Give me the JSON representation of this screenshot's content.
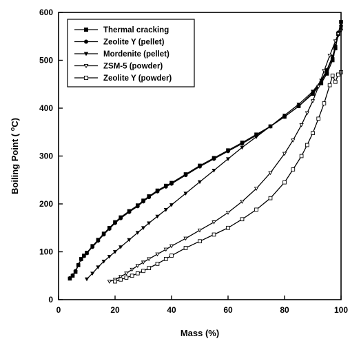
{
  "chart_data": {
    "type": "line",
    "xlabel": "Mass (%)",
    "ylabel": "Boiling Point ( °C)",
    "ylabel_parts": {
      "prefix": "Boiling Point ( ",
      "sup": "o",
      "suffix": "C)"
    },
    "xlim": [
      0,
      100
    ],
    "ylim": [
      0,
      600
    ],
    "xticks": [
      0,
      20,
      40,
      60,
      80,
      100
    ],
    "yticks": [
      0,
      100,
      200,
      300,
      400,
      500,
      600
    ],
    "grid": false,
    "legend_position": "top-left",
    "series": [
      {
        "name": "Thermal cracking",
        "marker": "filled-square",
        "x": [
          4,
          5,
          6,
          7,
          8,
          9,
          10,
          12,
          14,
          16,
          18,
          20,
          22,
          25,
          28,
          30,
          32,
          35,
          38,
          40,
          45,
          50,
          55,
          60,
          65,
          70,
          75,
          80,
          85,
          90,
          93,
          95,
          97,
          98,
          99,
          100
        ],
        "y": [
          44,
          50,
          58,
          72,
          85,
          92,
          98,
          112,
          125,
          138,
          150,
          162,
          172,
          185,
          197,
          207,
          216,
          228,
          238,
          244,
          262,
          280,
          296,
          312,
          328,
          345,
          362,
          382,
          404,
          430,
          452,
          472,
          500,
          525,
          555,
          580
        ]
      },
      {
        "name": "Zeolite Y (pellet)",
        "marker": "filled-circle",
        "x": [
          4,
          5,
          6,
          7,
          8,
          9,
          10,
          12,
          14,
          16,
          18,
          20,
          22,
          25,
          28,
          30,
          32,
          35,
          38,
          40,
          45,
          50,
          55,
          60,
          65,
          70,
          75,
          80,
          85,
          90,
          93,
          95,
          97,
          98,
          99,
          100
        ],
        "y": [
          45,
          51,
          60,
          73,
          84,
          91,
          97,
          110,
          123,
          136,
          148,
          160,
          170,
          183,
          195,
          205,
          214,
          226,
          236,
          242,
          260,
          278,
          294,
          310,
          326,
          343,
          362,
          382,
          404,
          432,
          455,
          478,
          505,
          530,
          558,
          572
        ]
      },
      {
        "name": "Mordenite (pellet)",
        "marker": "filled-triangle",
        "x": [
          10,
          12,
          14,
          16,
          18,
          20,
          22,
          25,
          28,
          30,
          32,
          35,
          38,
          40,
          45,
          50,
          55,
          60,
          65,
          70,
          75,
          80,
          85,
          90,
          93,
          95,
          97,
          98,
          99,
          100
        ],
        "y": [
          43,
          55,
          68,
          80,
          90,
          100,
          110,
          125,
          140,
          150,
          160,
          174,
          188,
          198,
          222,
          246,
          270,
          294,
          318,
          340,
          362,
          385,
          408,
          435,
          458,
          480,
          508,
          528,
          552,
          565
        ]
      },
      {
        "name": "ZSM-5 (powder)",
        "marker": "open-triangle",
        "x": [
          18,
          20,
          22,
          24,
          26,
          28,
          30,
          32,
          35,
          38,
          40,
          45,
          50,
          55,
          60,
          65,
          70,
          75,
          80,
          83,
          86,
          88,
          90,
          92,
          94,
          96,
          98,
          99,
          100
        ],
        "y": [
          38,
          42,
          48,
          55,
          63,
          71,
          78,
          85,
          95,
          105,
          112,
          128,
          145,
          162,
          182,
          205,
          232,
          265,
          305,
          333,
          365,
          390,
          415,
          445,
          478,
          510,
          540,
          555,
          562
        ]
      },
      {
        "name": "Zeolite Y (powder)",
        "marker": "open-square",
        "x": [
          20,
          22,
          24,
          26,
          28,
          30,
          32,
          35,
          38,
          40,
          45,
          50,
          55,
          60,
          65,
          70,
          75,
          80,
          83,
          86,
          88,
          90,
          92,
          94,
          96,
          97,
          98,
          99,
          100
        ],
        "y": [
          38,
          42,
          46,
          50,
          55,
          60,
          66,
          75,
          85,
          92,
          108,
          122,
          136,
          150,
          168,
          188,
          212,
          245,
          272,
          300,
          323,
          348,
          378,
          410,
          448,
          468,
          455,
          470,
          475
        ]
      }
    ]
  }
}
